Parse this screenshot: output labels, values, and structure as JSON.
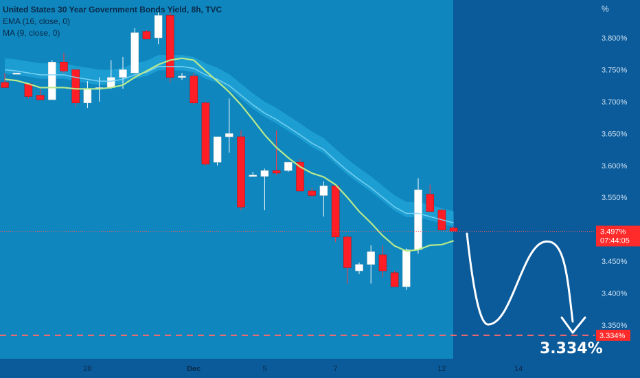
{
  "legend": {
    "title": "United States 30 Year Government Bonds Yield, 8h, TVC",
    "ema": "EMA (16, close, 0)",
    "ma": "MA (9, close, 0)"
  },
  "axis": {
    "unit": "%"
  },
  "price_tag": {
    "value": "3.497%",
    "countdown": "07:44:05"
  },
  "target_tag": {
    "value": "3.334%"
  },
  "target_label": "3.334%",
  "colors": {
    "background": "#0b5a9a",
    "plot": "#0f86bd",
    "band": "#23a6d9",
    "up": "#ffffff",
    "down": "#ff1e26",
    "ema": "#b8ea8d",
    "target_line": "#ff6b6b"
  },
  "chart_data": {
    "type": "candlestick",
    "title": "United States 30 Year Government Bonds Yield, 8h, TVC",
    "y_ticks": [
      "3.800%",
      "3.750%",
      "3.700%",
      "3.650%",
      "3.600%",
      "3.550%",
      "3.450%",
      "3.400%",
      "3.350%"
    ],
    "y_tick_values": [
      3.8,
      3.75,
      3.7,
      3.65,
      3.6,
      3.55,
      3.45,
      3.4,
      3.35
    ],
    "ylim": [
      3.3,
      3.82
    ],
    "x_ticks": [
      "28",
      "Dec",
      "5",
      "7",
      "12",
      "14"
    ],
    "x_tick_index": [
      7,
      16,
      22,
      28,
      37,
      43.5
    ],
    "candles": [
      {
        "o": 3.73,
        "h": 3.745,
        "l": 3.725,
        "c": 3.722
      },
      {
        "o": 3.745,
        "h": 3.745,
        "l": 3.745,
        "c": 3.745
      },
      {
        "o": 3.728,
        "h": 3.728,
        "l": 3.705,
        "c": 3.708
      },
      {
        "o": 3.71,
        "h": 3.72,
        "l": 3.705,
        "c": 3.703
      },
      {
        "o": 3.703,
        "h": 3.765,
        "l": 3.703,
        "c": 3.762
      },
      {
        "o": 3.762,
        "h": 3.776,
        "l": 3.745,
        "c": 3.748
      },
      {
        "o": 3.75,
        "h": 3.75,
        "l": 3.692,
        "c": 3.698
      },
      {
        "o": 3.698,
        "h": 3.732,
        "l": 3.69,
        "c": 3.72
      },
      {
        "o": 3.72,
        "h": 3.738,
        "l": 3.7,
        "c": 3.722
      },
      {
        "o": 3.722,
        "h": 3.765,
        "l": 3.72,
        "c": 3.738
      },
      {
        "o": 3.738,
        "h": 3.77,
        "l": 3.72,
        "c": 3.75
      },
      {
        "o": 3.745,
        "h": 3.815,
        "l": 3.745,
        "c": 3.808
      },
      {
        "o": 3.81,
        "h": 3.812,
        "l": 3.798,
        "c": 3.798
      },
      {
        "o": 3.8,
        "h": 3.84,
        "l": 3.79,
        "c": 3.835
      },
      {
        "o": 3.835,
        "h": 3.84,
        "l": 3.73,
        "c": 3.738
      },
      {
        "o": 3.738,
        "h": 3.745,
        "l": 3.734,
        "c": 3.74
      },
      {
        "o": 3.74,
        "h": 3.745,
        "l": 3.695,
        "c": 3.698
      },
      {
        "o": 3.698,
        "h": 3.7,
        "l": 3.6,
        "c": 3.602
      },
      {
        "o": 3.605,
        "h": 3.645,
        "l": 3.6,
        "c": 3.645
      },
      {
        "o": 3.645,
        "h": 3.705,
        "l": 3.62,
        "c": 3.65
      },
      {
        "o": 3.645,
        "h": 3.655,
        "l": 3.53,
        "c": 3.535
      },
      {
        "o": 3.585,
        "h": 3.59,
        "l": 3.583,
        "c": 3.585
      },
      {
        "o": 3.583,
        "h": 3.595,
        "l": 3.53,
        "c": 3.592
      },
      {
        "o": 3.592,
        "h": 3.655,
        "l": 3.585,
        "c": 3.588
      },
      {
        "o": 3.592,
        "h": 3.605,
        "l": 3.59,
        "c": 3.605
      },
      {
        "o": 3.605,
        "h": 3.61,
        "l": 3.56,
        "c": 3.56
      },
      {
        "o": 3.56,
        "h": 3.565,
        "l": 3.55,
        "c": 3.553
      },
      {
        "o": 3.553,
        "h": 3.575,
        "l": 3.52,
        "c": 3.568
      },
      {
        "o": 3.568,
        "h": 3.57,
        "l": 3.48,
        "c": 3.488
      },
      {
        "o": 3.488,
        "h": 3.49,
        "l": 3.415,
        "c": 3.44
      },
      {
        "o": 3.435,
        "h": 3.448,
        "l": 3.43,
        "c": 3.445
      },
      {
        "o": 3.445,
        "h": 3.475,
        "l": 3.415,
        "c": 3.465
      },
      {
        "o": 3.46,
        "h": 3.475,
        "l": 3.425,
        "c": 3.435
      },
      {
        "o": 3.432,
        "h": 3.435,
        "l": 3.41,
        "c": 3.41
      },
      {
        "o": 3.41,
        "h": 3.47,
        "l": 3.405,
        "c": 3.468
      },
      {
        "o": 3.468,
        "h": 3.58,
        "l": 3.462,
        "c": 3.562
      },
      {
        "o": 3.555,
        "h": 3.57,
        "l": 3.527,
        "c": 3.528
      },
      {
        "o": 3.53,
        "h": 3.532,
        "l": 3.498,
        "c": 3.499
      },
      {
        "o": 3.502,
        "h": 3.504,
        "l": 3.497,
        "c": 3.497
      }
    ],
    "ema": [
      3.75,
      3.748,
      3.745,
      3.742,
      3.742,
      3.742,
      3.738,
      3.735,
      3.732,
      3.732,
      3.735,
      3.742,
      3.746,
      3.755,
      3.755,
      3.755,
      3.752,
      3.742,
      3.735,
      3.725,
      3.71,
      3.695,
      3.682,
      3.672,
      3.66,
      3.648,
      3.635,
      3.625,
      3.608,
      3.592,
      3.578,
      3.565,
      3.55,
      3.535,
      3.525,
      3.525,
      3.52,
      3.515,
      3.51
    ],
    "ma": [
      3.735,
      3.733,
      3.728,
      3.722,
      3.722,
      3.722,
      3.72,
      3.72,
      3.72,
      3.722,
      3.726,
      3.738,
      3.748,
      3.758,
      3.765,
      3.768,
      3.765,
      3.748,
      3.732,
      3.715,
      3.695,
      3.672,
      3.648,
      3.628,
      3.612,
      3.598,
      3.588,
      3.582,
      3.57,
      3.55,
      3.528,
      3.51,
      3.49,
      3.474,
      3.466,
      3.468,
      3.475,
      3.476,
      3.482
    ],
    "last_price": 3.497,
    "target": 3.334
  }
}
